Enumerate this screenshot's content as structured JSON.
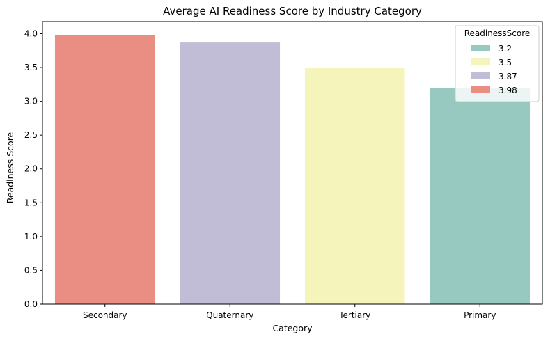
{
  "chart_data": {
    "type": "bar",
    "title": "Average AI Readiness Score by Industry Category",
    "xlabel": "Category",
    "ylabel": "Readiness Score",
    "categories": [
      "Secondary",
      "Quaternary",
      "Tertiary",
      "Primary"
    ],
    "values": [
      3.98,
      3.87,
      3.5,
      3.2
    ],
    "colors": [
      "#ea8e83",
      "#c1bdd6",
      "#f5f5bb",
      "#98c9c1"
    ],
    "ylim": [
      0,
      4.18
    ],
    "yticks": [
      "0.0",
      "0.5",
      "1.0",
      "1.5",
      "2.0",
      "2.5",
      "3.0",
      "3.5",
      "4.0"
    ],
    "grid": false,
    "legend": {
      "title": "ReadinessScore",
      "placement": "top-right",
      "entries": [
        {
          "label": "3.2",
          "color": "#98c9c1"
        },
        {
          "label": "3.5",
          "color": "#f5f5bb"
        },
        {
          "label": "3.87",
          "color": "#c1bdd6"
        },
        {
          "label": "3.98",
          "color": "#ea8e83"
        }
      ]
    }
  }
}
